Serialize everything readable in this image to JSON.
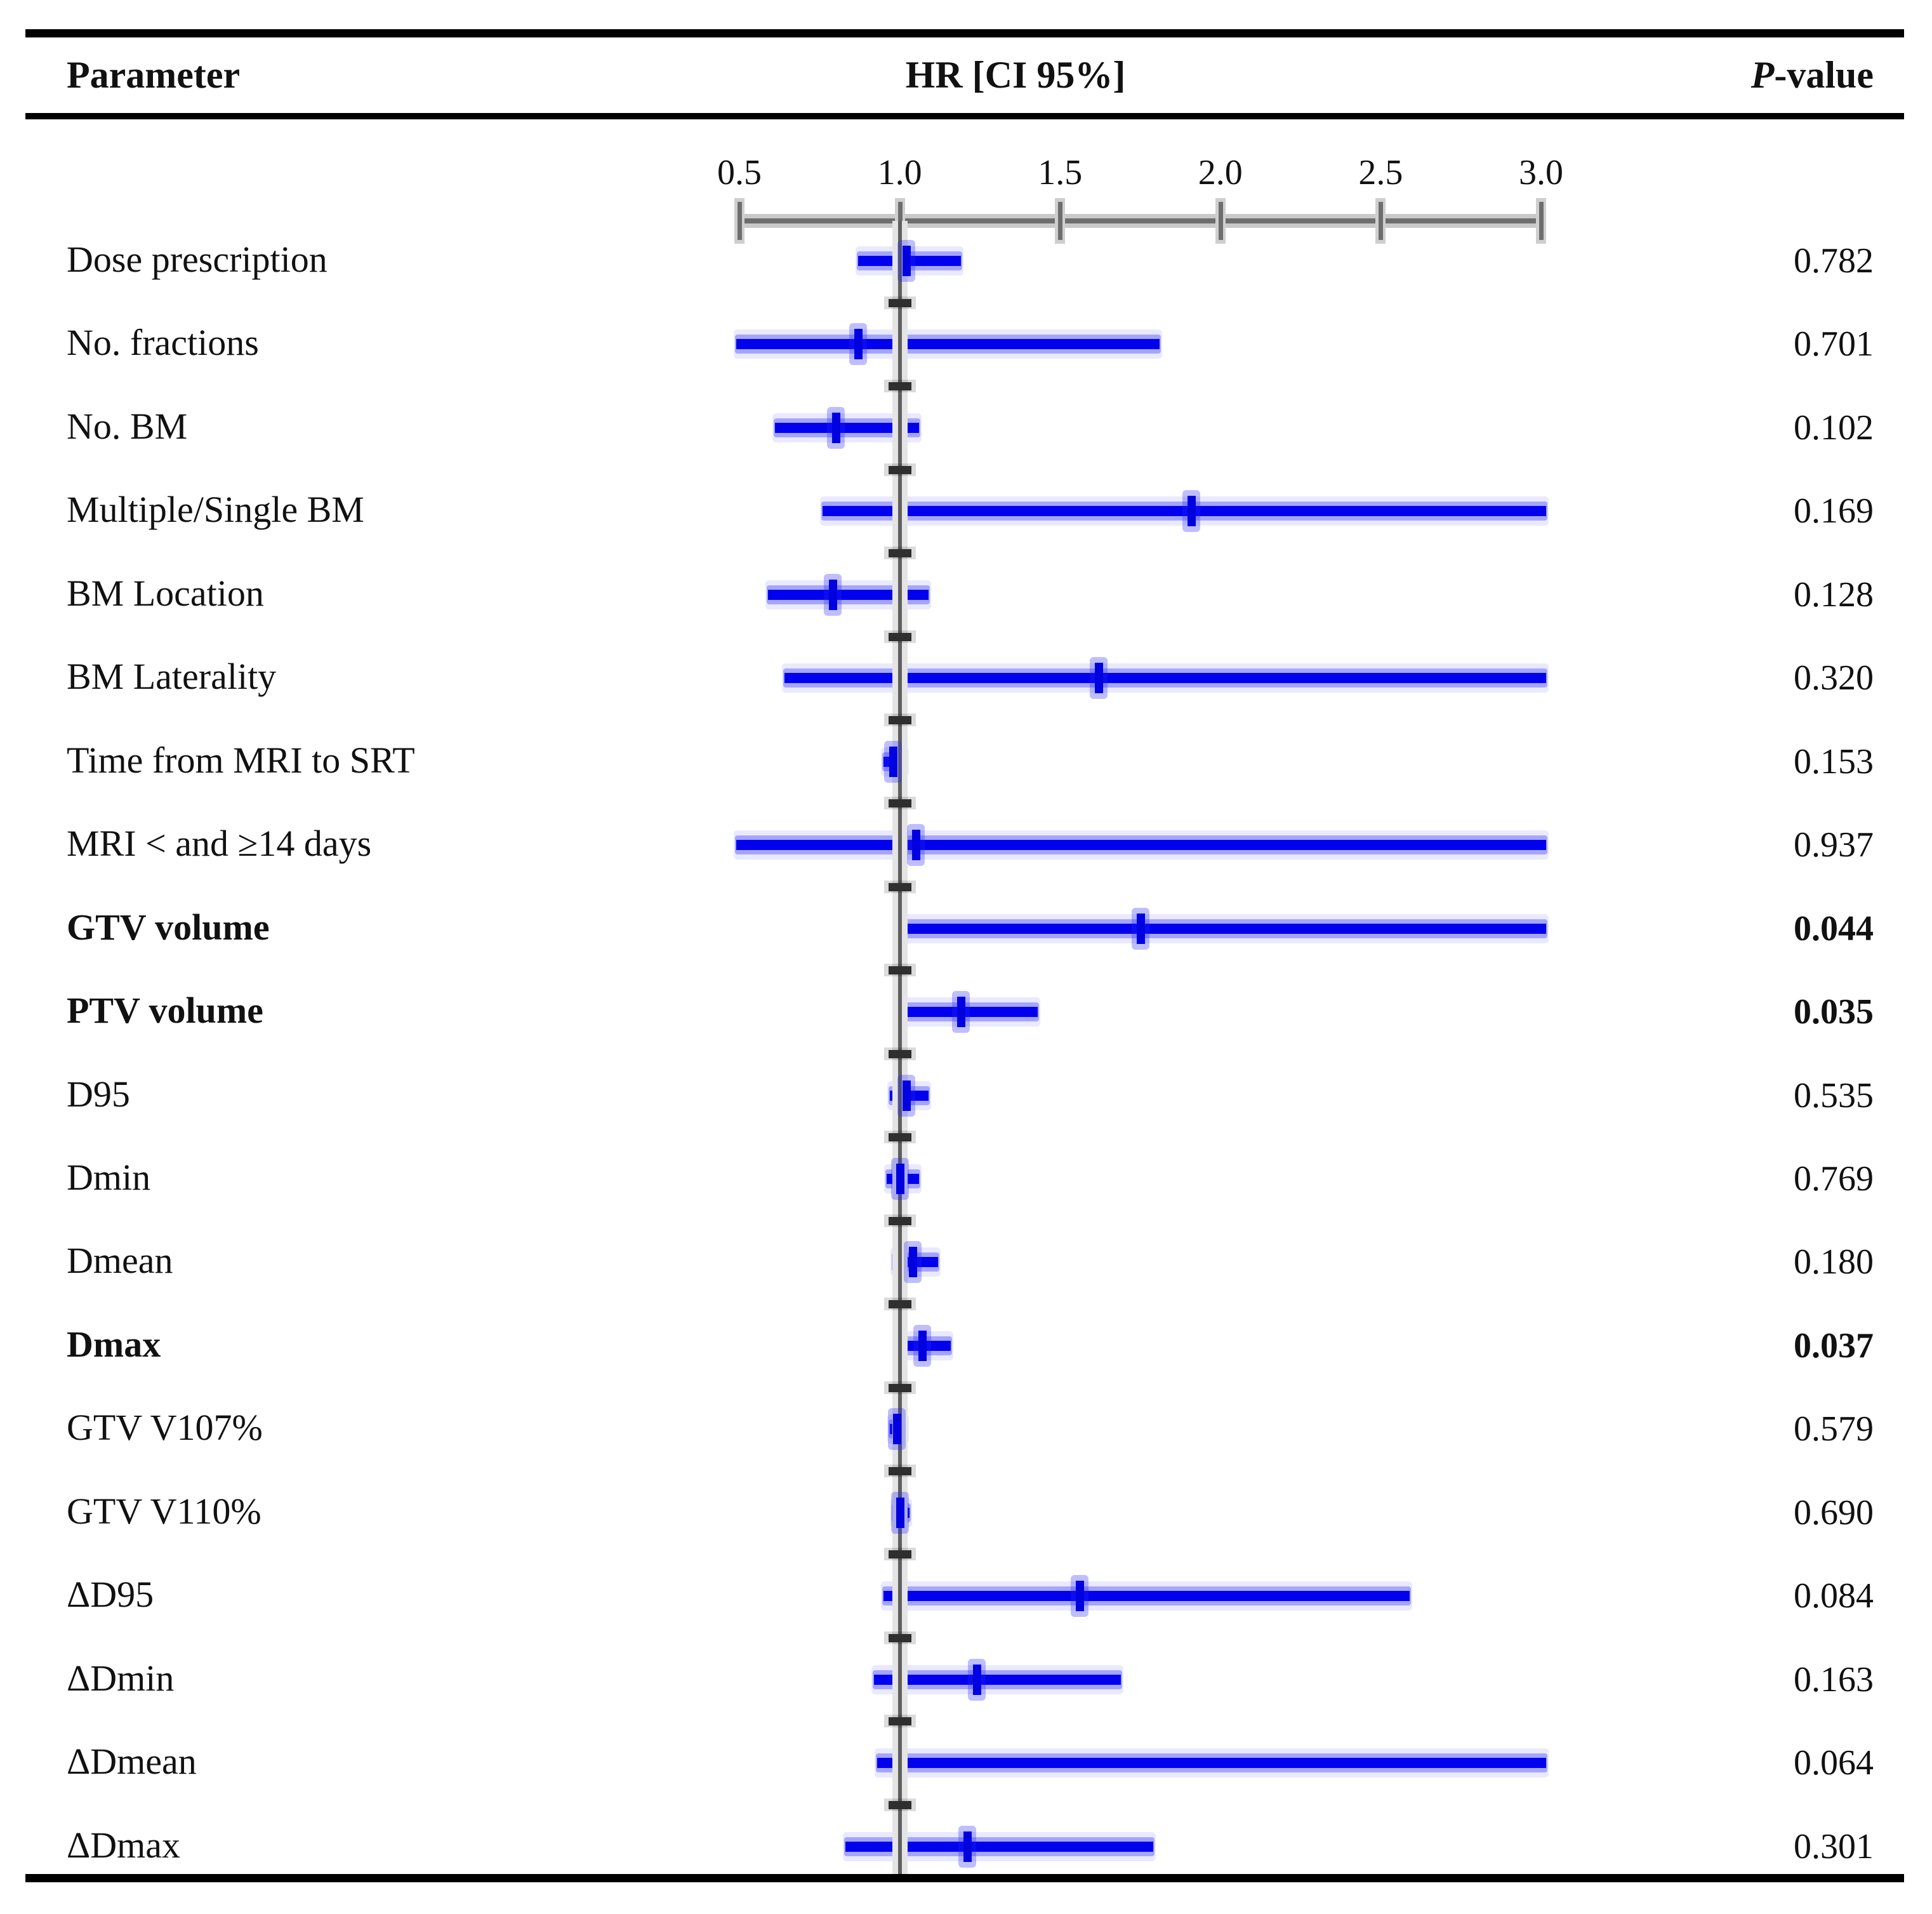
{
  "header": {
    "parameter_col": "Parameter",
    "hr_col": "HR [CI 95%]",
    "p_col_italic": "P",
    "p_col_rest": "-value"
  },
  "axis": {
    "tick_labels": [
      "0.5",
      "1.0",
      "1.5",
      "2.0",
      "2.5",
      "3.0"
    ],
    "tick_values": [
      0.5,
      1.0,
      1.5,
      2.0,
      2.5,
      3.0
    ],
    "min": 0.5,
    "max": 3.0,
    "reference_line_x": 1.0
  },
  "colors": {
    "bar_blue": "#0101ee",
    "bar_glow": "rgba(40,40,255,0.35)",
    "axis_gray": "#6e6e6e",
    "reference_line_gray": "#5f5f5f",
    "text_black": "#111111"
  },
  "chart_data": {
    "type": "scatter",
    "variant": "forest-plot",
    "title": "",
    "xlabel": "HR [CI 95%]",
    "ylabel": "Parameter",
    "xlim": [
      0.5,
      3.0
    ],
    "x_ticks": [
      0.5,
      1.0,
      1.5,
      2.0,
      2.5,
      3.0
    ],
    "grid": false,
    "legend": "none",
    "reference_line_x": 1.0,
    "rows": [
      {
        "parameter": "Dose prescription",
        "hr": 1.02,
        "ci_low": 0.87,
        "ci_high": 1.19,
        "ci_clipped_right": false,
        "p_value": "0.782",
        "bold": false
      },
      {
        "parameter": "No. fractions",
        "hr": 0.87,
        "ci_low": 0.49,
        "ci_high": 1.81,
        "ci_clipped_right": false,
        "p_value": "0.701",
        "bold": false
      },
      {
        "parameter": "No. BM",
        "hr": 0.8,
        "ci_low": 0.61,
        "ci_high": 1.06,
        "ci_clipped_right": false,
        "p_value": "0.102",
        "bold": false
      },
      {
        "parameter": "Multiple/Single BM",
        "hr": 1.91,
        "ci_low": 0.76,
        "ci_high": 3.0,
        "ci_clipped_right": true,
        "p_value": "0.169",
        "bold": false
      },
      {
        "parameter": "BM Location",
        "hr": 0.79,
        "ci_low": 0.59,
        "ci_high": 1.09,
        "ci_clipped_right": false,
        "p_value": "0.128",
        "bold": false
      },
      {
        "parameter": "BM Laterality",
        "hr": 1.62,
        "ci_low": 0.64,
        "ci_high": 3.0,
        "ci_clipped_right": true,
        "p_value": "0.320",
        "bold": false
      },
      {
        "parameter": "Time from MRI to SRT",
        "hr": 0.98,
        "ci_low": 0.95,
        "ci_high": 1.02,
        "ci_clipped_right": false,
        "p_value": "0.153",
        "bold": false
      },
      {
        "parameter": "MRI < and ≥14 days",
        "hr": 1.05,
        "ci_low": 0.49,
        "ci_high": 3.0,
        "ci_clipped_right": true,
        "p_value": "0.937",
        "bold": false
      },
      {
        "parameter": "GTV volume",
        "hr": 1.75,
        "ci_low": 1.02,
        "ci_high": 3.0,
        "ci_clipped_right": true,
        "p_value": "0.044",
        "bold": true
      },
      {
        "parameter": "PTV volume",
        "hr": 1.19,
        "ci_low": 1.02,
        "ci_high": 1.43,
        "ci_clipped_right": false,
        "p_value": "0.035",
        "bold": true
      },
      {
        "parameter": "D95",
        "hr": 1.02,
        "ci_low": 0.97,
        "ci_high": 1.09,
        "ci_clipped_right": false,
        "p_value": "0.535",
        "bold": false
      },
      {
        "parameter": "Dmin",
        "hr": 1.0,
        "ci_low": 0.96,
        "ci_high": 1.06,
        "ci_clipped_right": false,
        "p_value": "0.769",
        "bold": false
      },
      {
        "parameter": "Dmean",
        "hr": 1.04,
        "ci_low": 0.98,
        "ci_high": 1.12,
        "ci_clipped_right": false,
        "p_value": "0.180",
        "bold": false
      },
      {
        "parameter": "Dmax",
        "hr": 1.07,
        "ci_low": 1.01,
        "ci_high": 1.16,
        "ci_clipped_right": false,
        "p_value": "0.037",
        "bold": true
      },
      {
        "parameter": "GTV V107%",
        "hr": 0.99,
        "ci_low": 0.97,
        "ci_high": 1.02,
        "ci_clipped_right": false,
        "p_value": "0.579",
        "bold": false
      },
      {
        "parameter": "GTV V110%",
        "hr": 1.0,
        "ci_low": 0.98,
        "ci_high": 1.03,
        "ci_clipped_right": false,
        "p_value": "0.690",
        "bold": false
      },
      {
        "parameter": "ΔD95",
        "hr": 1.56,
        "ci_low": 0.95,
        "ci_high": 2.59,
        "ci_clipped_right": false,
        "p_value": "0.084",
        "bold": false
      },
      {
        "parameter": "ΔDmin",
        "hr": 1.24,
        "ci_low": 0.92,
        "ci_high": 1.69,
        "ci_clipped_right": false,
        "p_value": "0.163",
        "bold": false
      },
      {
        "parameter": "ΔDmean",
        "hr": null,
        "ci_low": 0.93,
        "ci_high": 3.0,
        "ci_clipped_right": true,
        "p_value": "0.064",
        "bold": false
      },
      {
        "parameter": "ΔDmax",
        "hr": 1.21,
        "ci_low": 0.83,
        "ci_high": 1.79,
        "ci_clipped_right": false,
        "p_value": "0.301",
        "bold": false
      }
    ]
  }
}
